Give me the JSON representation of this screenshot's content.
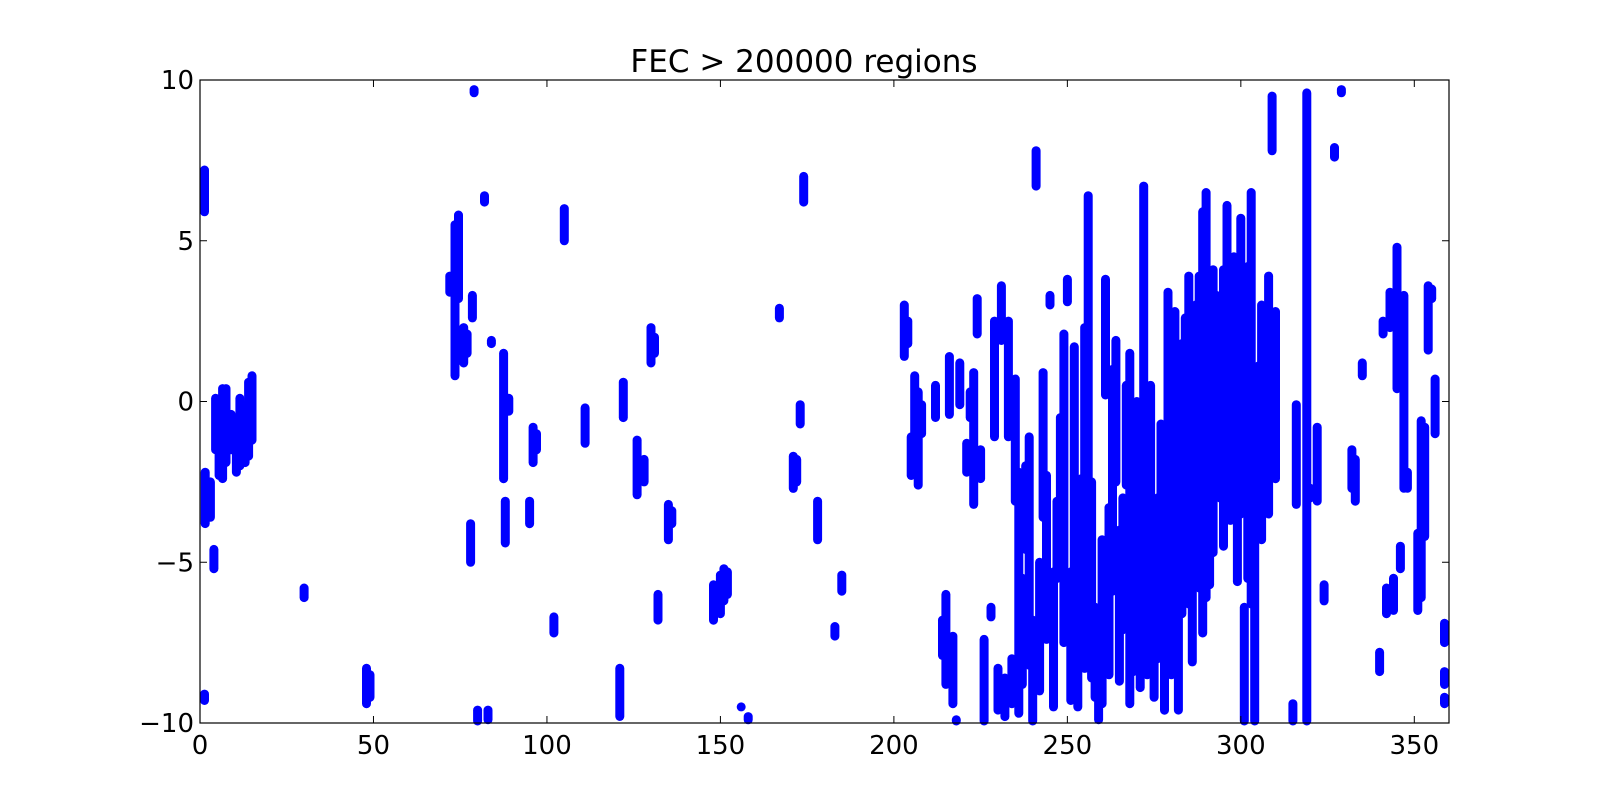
{
  "chart_data": {
    "type": "scatter",
    "title": "FEC > 200000 regions",
    "xlabel": "",
    "ylabel": "",
    "xlim": [
      0,
      360
    ],
    "ylim": [
      -10,
      10
    ],
    "xticks": [
      0,
      50,
      100,
      150,
      200,
      250,
      300,
      350
    ],
    "yticks": [
      10,
      5,
      0,
      -5,
      -10
    ],
    "xtick_labels": [
      "0",
      "50",
      "100",
      "150",
      "200",
      "250",
      "300",
      "350"
    ],
    "ytick_labels": [
      "10",
      "5",
      "0",
      "−5",
      "−10"
    ],
    "grid": false,
    "legend": "none",
    "marker_color": "#0000ff",
    "series": [
      {
        "segments": [
          [
            0.5,
            5.9,
            7.2
          ],
          [
            0.3,
            -9.3,
            -9.1
          ],
          [
            1.5,
            -3.8,
            -2.2
          ],
          [
            3,
            -3.6,
            -2.5
          ],
          [
            4,
            -5.2,
            -4.6
          ],
          [
            4.5,
            -1.5,
            0.1
          ],
          [
            5.5,
            -2.3,
            -0.6
          ],
          [
            6.5,
            -2.4,
            0.4
          ],
          [
            7.5,
            -1.9,
            0.4
          ],
          [
            9,
            -1.5,
            -0.4
          ],
          [
            10.5,
            -2.2,
            -0.6
          ],
          [
            11.5,
            -2.0,
            0.1
          ],
          [
            13,
            -1.9,
            -0.1
          ],
          [
            14,
            -1.7,
            0.6
          ],
          [
            15,
            -1.2,
            0.8
          ],
          [
            30,
            -6.1,
            -5.8
          ],
          [
            48,
            -9.4,
            -8.3
          ],
          [
            49,
            -9.2,
            -8.5
          ],
          [
            72,
            3.4,
            3.9
          ],
          [
            73.5,
            0.8,
            5.5
          ],
          [
            74.5,
            3.2,
            5.8
          ],
          [
            76,
            1.2,
            2.3
          ],
          [
            77,
            1.5,
            2.1
          ],
          [
            78,
            -5.0,
            -3.8
          ],
          [
            78.5,
            2.6,
            3.3
          ],
          [
            79,
            9.6,
            9.7
          ],
          [
            80,
            -10,
            -9.6
          ],
          [
            82,
            6.2,
            6.4
          ],
          [
            83,
            -9.9,
            -9.6
          ],
          [
            84,
            1.8,
            1.9
          ],
          [
            87.5,
            -2.4,
            1.5
          ],
          [
            88,
            -4.4,
            -3.1
          ],
          [
            89,
            -0.3,
            0.1
          ],
          [
            95,
            -3.8,
            -3.1
          ],
          [
            96,
            -1.9,
            -0.8
          ],
          [
            97,
            -1.5,
            -1.0
          ],
          [
            102,
            -7.2,
            -6.7
          ],
          [
            105,
            5.0,
            6.0
          ],
          [
            111,
            -1.3,
            -0.2
          ],
          [
            121,
            -9.8,
            -8.3
          ],
          [
            122,
            -0.5,
            0.6
          ],
          [
            126,
            -2.9,
            -1.2
          ],
          [
            128,
            -2.5,
            -1.8
          ],
          [
            130,
            1.2,
            2.3
          ],
          [
            131,
            1.5,
            2.0
          ],
          [
            132,
            -6.8,
            -6.0
          ],
          [
            135,
            -4.3,
            -3.2
          ],
          [
            136,
            -3.8,
            -3.4
          ],
          [
            148,
            -6.8,
            -5.7
          ],
          [
            149,
            -6.3,
            -5.8
          ],
          [
            150,
            -6.6,
            -5.4
          ],
          [
            151,
            -6.2,
            -5.2
          ],
          [
            152,
            -6.0,
            -5.3
          ],
          [
            156,
            -9.5,
            -9.5
          ],
          [
            158,
            -9.9,
            -9.8
          ],
          [
            167,
            2.6,
            2.9
          ],
          [
            171,
            -2.7,
            -1.7
          ],
          [
            172,
            -2.5,
            -1.8
          ],
          [
            173,
            -0.7,
            -0.1
          ],
          [
            174,
            6.2,
            7.0
          ],
          [
            178,
            -4.3,
            -3.1
          ],
          [
            183,
            -7.3,
            -7.0
          ],
          [
            185,
            -5.9,
            -5.4
          ],
          [
            203,
            1.4,
            3.0
          ],
          [
            204,
            1.8,
            2.5
          ],
          [
            205,
            -2.3,
            -1.1
          ],
          [
            206,
            -1.2,
            0.8
          ],
          [
            207,
            -2.6,
            0.3
          ],
          [
            208,
            -1.0,
            -0.1
          ],
          [
            212,
            -0.5,
            0.5
          ],
          [
            214,
            -7.9,
            -6.8
          ],
          [
            215,
            -8.8,
            -6.0
          ],
          [
            216,
            -0.4,
            1.4
          ],
          [
            217,
            -9.4,
            -7.3
          ],
          [
            218,
            -10,
            -9.9
          ],
          [
            219,
            -0.1,
            1.2
          ],
          [
            221,
            -2.2,
            -1.3
          ],
          [
            222,
            -0.5,
            0.3
          ],
          [
            223,
            -3.2,
            0.9
          ],
          [
            224,
            2.1,
            3.2
          ],
          [
            225,
            -2.4,
            -1.5
          ],
          [
            226,
            -10,
            -7.4
          ],
          [
            228,
            -6.7,
            -6.4
          ],
          [
            229,
            -1.1,
            2.5
          ],
          [
            230,
            -9.6,
            -8.3
          ],
          [
            231,
            1.9,
            3.6
          ],
          [
            232,
            -9.8,
            -8.6
          ],
          [
            233,
            -1.1,
            2.5
          ],
          [
            234,
            -9.4,
            -8.0
          ],
          [
            235,
            -3.1,
            0.7
          ],
          [
            236,
            -9.7,
            -2.2
          ],
          [
            237,
            -8.8,
            -5.5
          ],
          [
            238,
            -4.6,
            -2.0
          ],
          [
            239,
            -8.2,
            -1.1
          ],
          [
            240,
            -10,
            -6.8
          ],
          [
            241,
            6.7,
            7.8
          ],
          [
            242,
            -9.0,
            -5.0
          ],
          [
            243,
            -3.6,
            0.9
          ],
          [
            244,
            -7.4,
            -2.3
          ],
          [
            245,
            3.0,
            3.3
          ],
          [
            246,
            -9.5,
            -5.3
          ],
          [
            247,
            -5.5,
            -3.1
          ],
          [
            248,
            -4.4,
            -0.5
          ],
          [
            249,
            -7.5,
            2.1
          ],
          [
            250,
            3.1,
            3.8
          ],
          [
            251,
            -9.3,
            -5.3
          ],
          [
            252,
            -8.6,
            1.7
          ],
          [
            253,
            -9.5,
            -2.7
          ],
          [
            254,
            -7.1,
            -2.4
          ],
          [
            255,
            -8.3,
            2.3
          ],
          [
            256,
            -3.0,
            6.4
          ],
          [
            257,
            -8.6,
            -2.5
          ],
          [
            258,
            -9.2,
            -6.4
          ],
          [
            259,
            -9.9,
            -6.9
          ],
          [
            260,
            -9.4,
            -4.3
          ],
          [
            261,
            0.2,
            3.8
          ],
          [
            262,
            -8.5,
            -3.3
          ],
          [
            263,
            -5.9,
            1.0
          ],
          [
            264,
            -2.5,
            1.9
          ],
          [
            265,
            -8.7,
            -4.0
          ],
          [
            266,
            -7.1,
            -3.0
          ],
          [
            267,
            -2.6,
            0.5
          ],
          [
            268,
            -9.4,
            1.5
          ],
          [
            269,
            -8.4,
            -1.2
          ],
          [
            270,
            -7.4,
            0.0
          ],
          [
            271,
            -8.9,
            -0.3
          ],
          [
            272,
            -7.6,
            6.7
          ],
          [
            273,
            -8.5,
            -3.2
          ],
          [
            274,
            -7.0,
            0.5
          ],
          [
            275,
            -9.2,
            -5.8
          ],
          [
            276,
            -8.0,
            -3.0
          ],
          [
            277,
            -7.3,
            -0.7
          ],
          [
            278,
            -9.6,
            -5.2
          ],
          [
            279,
            -7.2,
            3.4
          ],
          [
            280,
            -8.5,
            -1.2
          ],
          [
            281,
            -6.3,
            2.8
          ],
          [
            282,
            -9.6,
            -3.0
          ],
          [
            283,
            -6.6,
            1.8
          ],
          [
            284,
            -5.5,
            2.6
          ],
          [
            285,
            -6.3,
            3.9
          ],
          [
            286,
            -8.1,
            0.6
          ],
          [
            287,
            -4.3,
            3.0
          ],
          [
            288,
            -5.8,
            3.9
          ],
          [
            289,
            -7.2,
            5.9
          ],
          [
            290,
            -6.1,
            6.5
          ],
          [
            291,
            -5.7,
            3.7
          ],
          [
            292,
            -4.7,
            4.1
          ],
          [
            293,
            -1.5,
            3.3
          ],
          [
            294,
            -3.0,
            1.8
          ],
          [
            295,
            -4.5,
            4.1
          ],
          [
            296,
            -2.8,
            6.1
          ],
          [
            297,
            -3.7,
            2.6
          ],
          [
            298,
            -2.7,
            4.5
          ],
          [
            299,
            -5.6,
            3.6
          ],
          [
            300,
            -3.5,
            5.7
          ],
          [
            301,
            -10,
            -6.4
          ],
          [
            302,
            -5.5,
            4.2
          ],
          [
            303,
            -6.3,
            6.5
          ],
          [
            304,
            -10,
            -1.5
          ],
          [
            305,
            -2.7,
            1.1
          ],
          [
            306,
            -4.3,
            3.0
          ],
          [
            307,
            -2.2,
            0.2
          ],
          [
            308,
            -3.5,
            3.9
          ],
          [
            309,
            7.8,
            9.5
          ],
          [
            310,
            -2.4,
            2.8
          ],
          [
            315,
            -10,
            -9.4
          ],
          [
            316,
            -3.2,
            -0.1
          ],
          [
            319,
            -10,
            9.6
          ],
          [
            320,
            -3.0,
            -2.7
          ],
          [
            322,
            -3.1,
            -0.8
          ],
          [
            324,
            -6.2,
            -5.7
          ],
          [
            327,
            7.6,
            7.9
          ],
          [
            329,
            9.6,
            9.7
          ],
          [
            332,
            -2.7,
            -1.5
          ],
          [
            333,
            -3.1,
            -1.8
          ],
          [
            335,
            0.8,
            1.2
          ],
          [
            340,
            -8.4,
            -7.8
          ],
          [
            341,
            2.1,
            2.5
          ],
          [
            342,
            -6.6,
            -5.8
          ],
          [
            343,
            2.3,
            3.4
          ],
          [
            344,
            -6.5,
            -5.5
          ],
          [
            345,
            0.4,
            4.8
          ],
          [
            346,
            -5.2,
            -4.5
          ],
          [
            347,
            -2.7,
            3.3
          ],
          [
            348,
            -2.7,
            -2.2
          ],
          [
            351,
            -6.5,
            -4.1
          ],
          [
            352,
            -6.1,
            -0.6
          ],
          [
            353,
            -4.2,
            -0.8
          ],
          [
            354,
            1.6,
            3.6
          ],
          [
            355,
            3.2,
            3.5
          ],
          [
            356,
            -1.0,
            0.7
          ],
          [
            359,
            -7.5,
            -6.9
          ],
          [
            359.5,
            -8.8,
            -8.4
          ],
          [
            360,
            -9.4,
            -9.2
          ]
        ]
      }
    ]
  }
}
